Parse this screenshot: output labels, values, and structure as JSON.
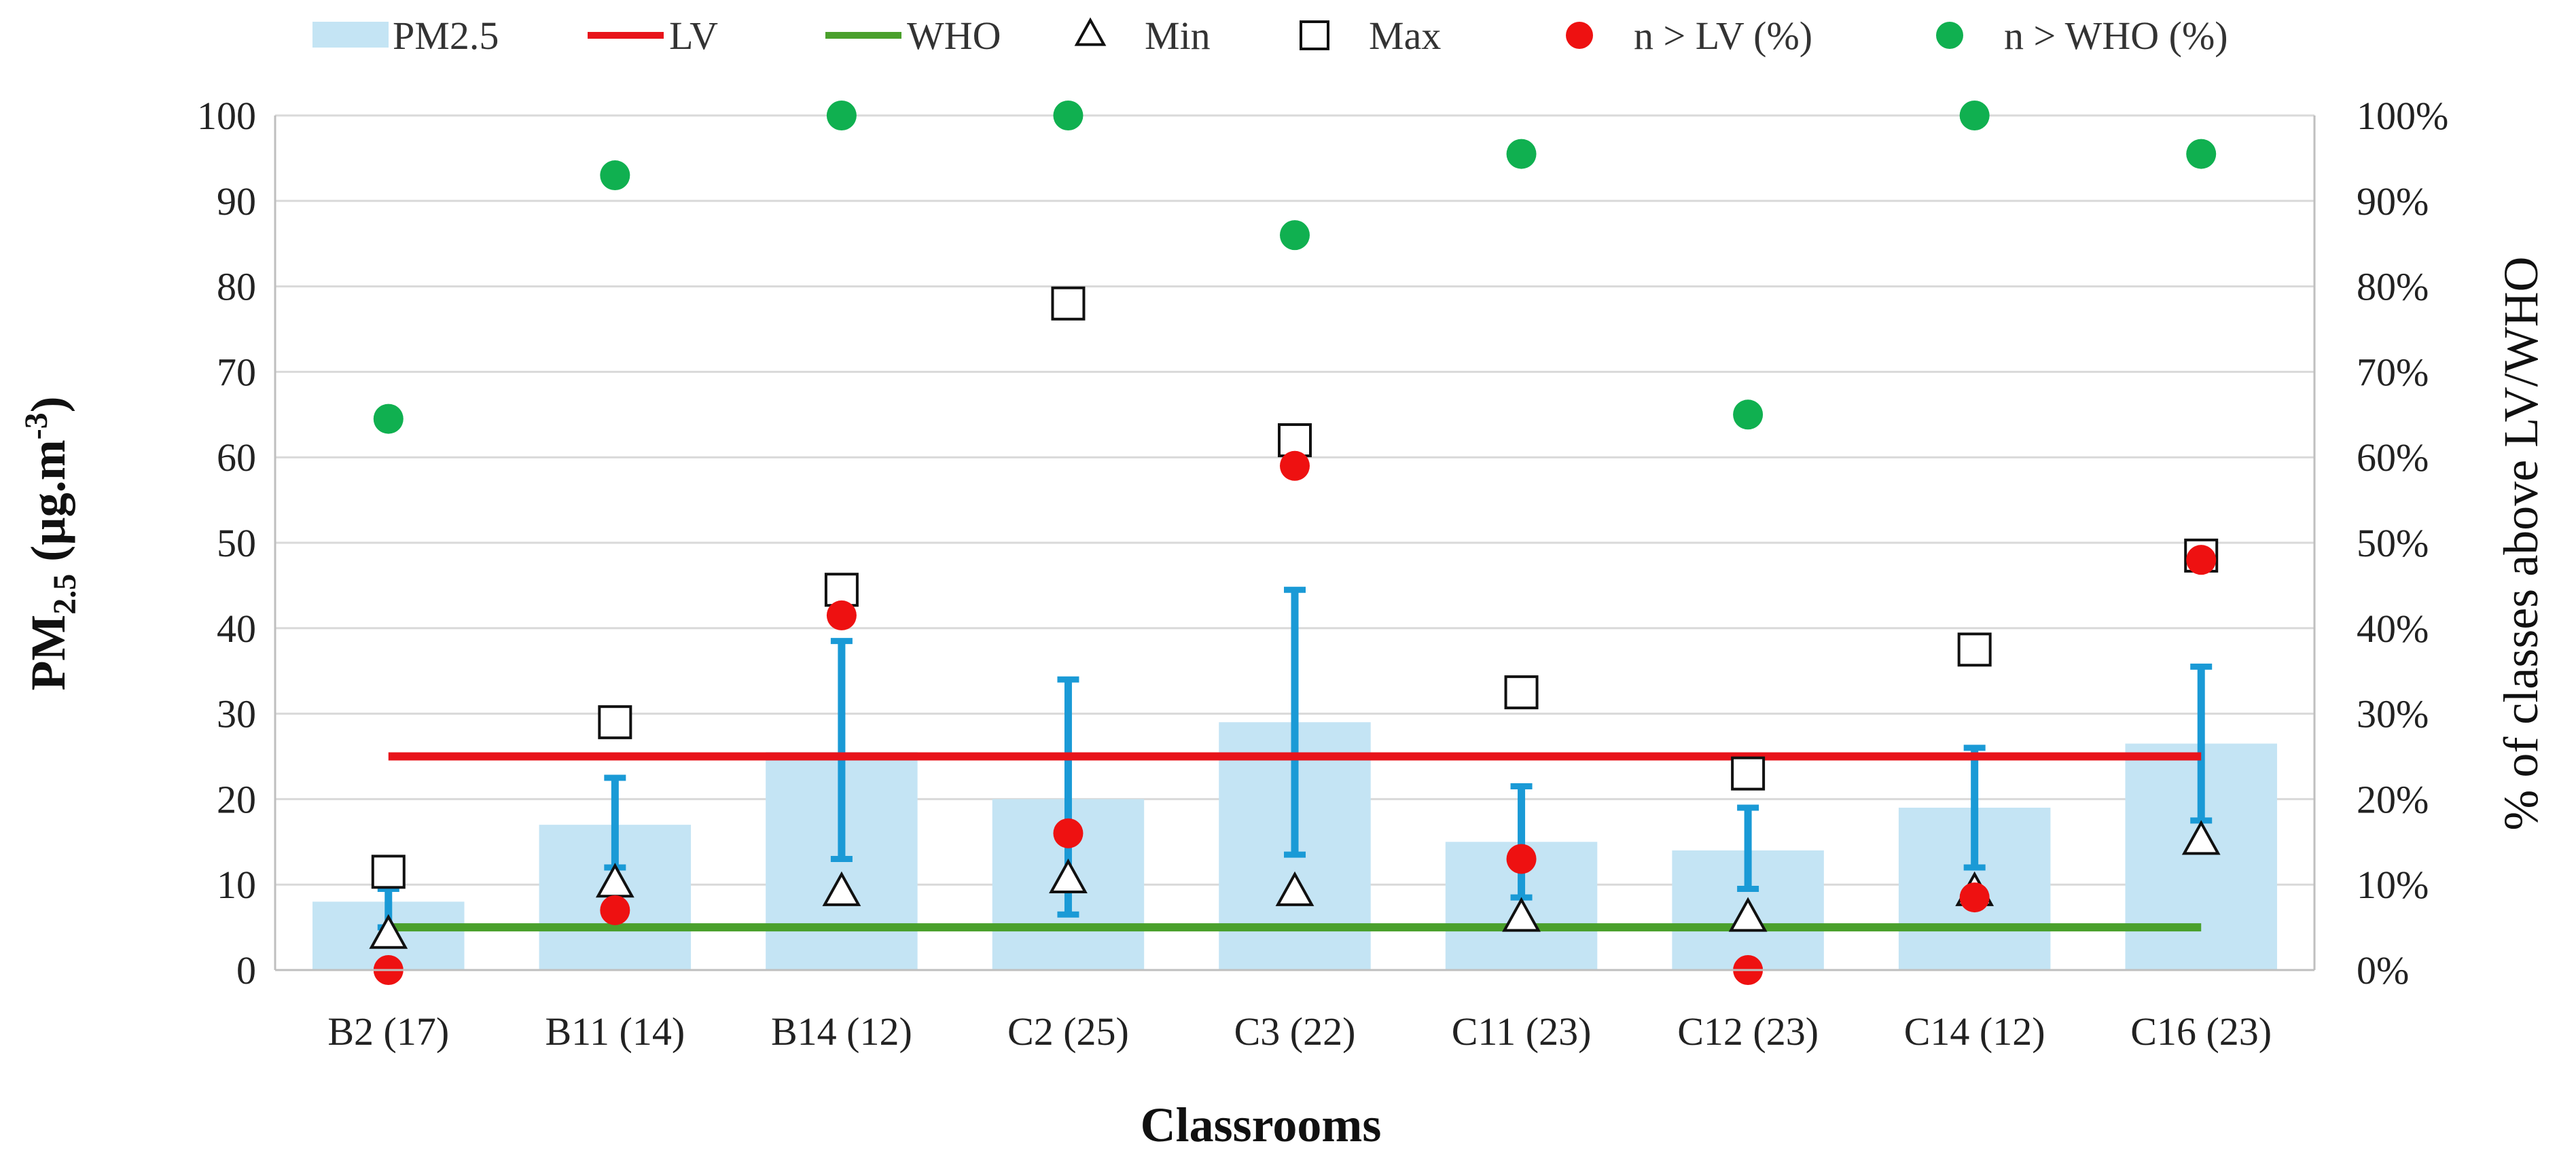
{
  "chart_data": {
    "type": "bar",
    "categories": [
      "B2 (17)",
      "B11 (14)",
      "B14 (12)",
      "C2 (25)",
      "C3 (22)",
      "C11 (23)",
      "C12 (23)",
      "C14 (12)",
      "C16 (23)"
    ],
    "series": [
      {
        "name": "PM2.5",
        "kind": "bar",
        "axis": "left",
        "values": [
          8,
          17,
          25.5,
          20,
          29,
          15,
          14,
          19,
          26.5
        ]
      },
      {
        "name": "error_low",
        "kind": "errorbar",
        "axis": "left",
        "values": [
          5,
          12,
          13,
          6.5,
          13.5,
          8.5,
          9.5,
          12,
          17.5
        ]
      },
      {
        "name": "error_high",
        "kind": "errorbar",
        "axis": "left",
        "values": [
          9.5,
          22.5,
          38.5,
          34,
          44.5,
          21.5,
          19,
          26,
          35.5
        ]
      },
      {
        "name": "LV",
        "kind": "line",
        "axis": "left",
        "values": [
          25,
          25,
          25,
          25,
          25,
          25,
          25,
          25,
          25
        ]
      },
      {
        "name": "WHO",
        "kind": "line",
        "axis": "left",
        "values": [
          5,
          5,
          5,
          5,
          5,
          5,
          5,
          5,
          5
        ]
      },
      {
        "name": "Min",
        "kind": "marker",
        "axis": "left",
        "values": [
          4,
          10,
          9,
          10.5,
          9,
          6,
          6,
          9,
          15
        ]
      },
      {
        "name": "Max",
        "kind": "marker",
        "axis": "left",
        "values": [
          11.5,
          29,
          44.5,
          78,
          62,
          32.5,
          23,
          37.5,
          48.5
        ]
      },
      {
        "name": "n > LV (%)",
        "kind": "marker",
        "axis": "right",
        "values": [
          0,
          7,
          41.5,
          16,
          59,
          13,
          0,
          8.5,
          48
        ]
      },
      {
        "name": "n > WHO (%)",
        "kind": "marker",
        "axis": "right",
        "values": [
          64.5,
          93,
          100,
          100,
          86,
          95.5,
          65,
          100,
          95.5
        ]
      }
    ],
    "legend": [
      {
        "label": "PM2.5",
        "symbol": "bar"
      },
      {
        "label": "LV",
        "symbol": "line-red"
      },
      {
        "label": "WHO",
        "symbol": "line-green"
      },
      {
        "label": "Min",
        "symbol": "triangle"
      },
      {
        "label": "Max",
        "symbol": "square"
      },
      {
        "label": "n > LV (%)",
        "symbol": "dot-red"
      },
      {
        "label": "n > WHO (%)",
        "symbol": "dot-green"
      }
    ],
    "legend_position": "top",
    "ylabel_parts": {
      "main": "PM",
      "sub": "2.5",
      "unit": " (µg.m",
      "sup": "-3",
      "close": ")"
    },
    "y2label": "% of classes above LV/WHO",
    "xlabel": "Classrooms",
    "ylim": [
      0,
      100
    ],
    "y2lim": [
      0,
      100
    ],
    "yticks": [
      "0",
      "10",
      "20",
      "30",
      "40",
      "50",
      "60",
      "70",
      "80",
      "90",
      "100"
    ],
    "y2ticks": [
      "0%",
      "10%",
      "20%",
      "30%",
      "40%",
      "50%",
      "60%",
      "70%",
      "80%",
      "90%",
      "100%"
    ],
    "grid": true
  },
  "colors": {
    "bar": "#c4e4f4",
    "errorbar": "#1a9ad6",
    "lv": "#e8141b",
    "who": "#4aa02c",
    "dot_lv": "#ee1111",
    "dot_who": "#10b050",
    "grid": "#d9d9d9",
    "axis": "#bfbfbf"
  }
}
